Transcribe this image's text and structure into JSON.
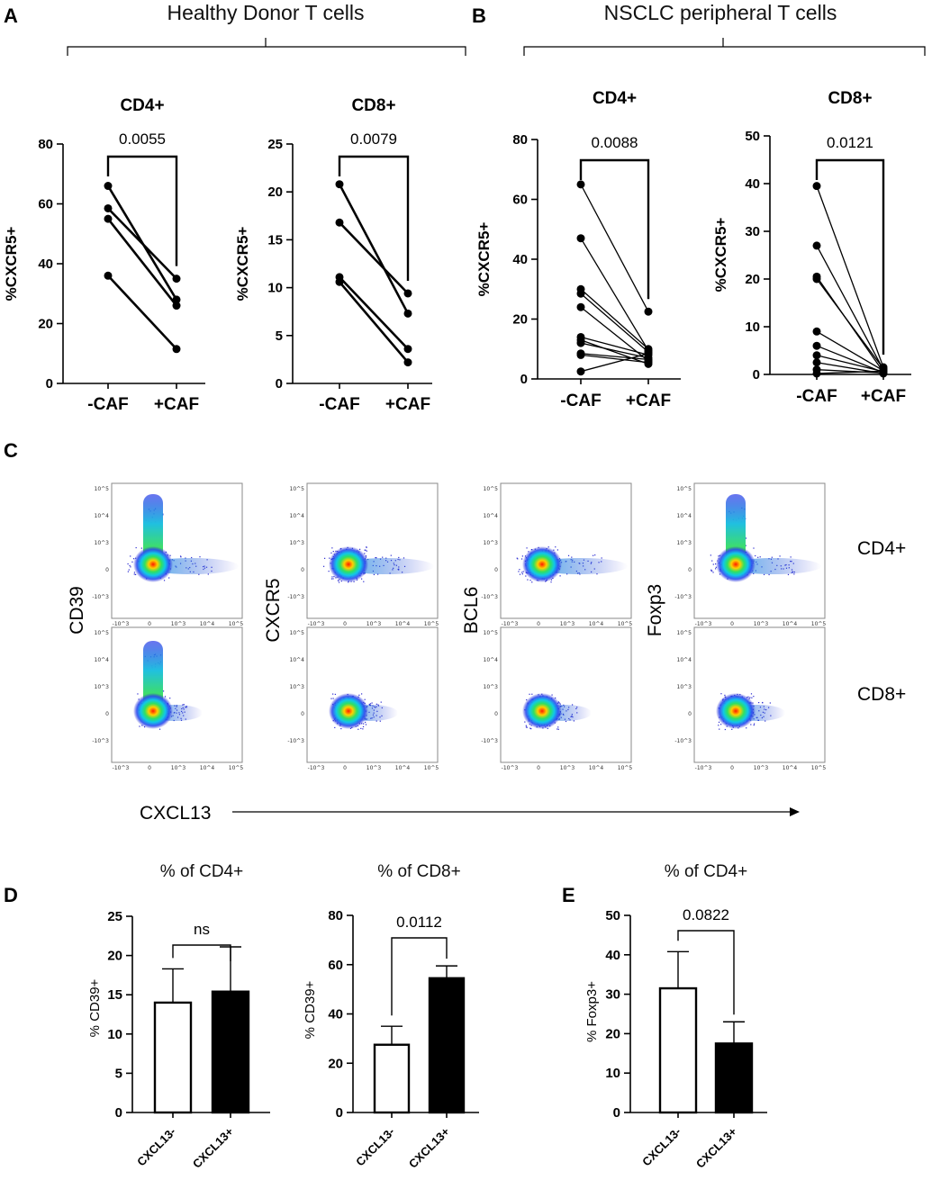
{
  "panel_labels": {
    "a": "A",
    "b": "B",
    "c": "C",
    "d": "D",
    "e": "E"
  },
  "groups": {
    "a": "Healthy Donor T cells",
    "b": "NSCLC peripheral T cells"
  },
  "flow": {
    "row_labels": [
      "CD4+",
      "CD8+"
    ],
    "y_markers": [
      "CD39",
      "CXCR5",
      "BCL6",
      "Foxp3"
    ],
    "x_marker": "CXCL13",
    "y_ticks": [
      "10^5",
      "10^4",
      "10^3",
      "0",
      "-10^3"
    ],
    "x_ticks": [
      "-10^3",
      "0",
      "10^3",
      "10^4",
      "10^5"
    ]
  },
  "colors": {
    "line": "#000000",
    "bar_neg": "#ffffff",
    "bar_pos": "#000000",
    "flow_bg": "#2a2ad0",
    "flow_core": "#ff2000"
  },
  "chart_data": [
    {
      "id": "a1",
      "type": "line",
      "title": "CD4+",
      "ylabel": "%CXCR5+",
      "categories": [
        "-CAF",
        "+CAF"
      ],
      "ylim": [
        0,
        80
      ],
      "yticks": [
        0,
        20,
        40,
        60,
        80
      ],
      "pvalue": "0.0055",
      "pairs": [
        [
          66,
          28
        ],
        [
          58.5,
          35
        ],
        [
          55,
          26
        ],
        [
          36,
          11.5
        ]
      ]
    },
    {
      "id": "a2",
      "type": "line",
      "title": "CD8+",
      "ylabel": "%CXCR5+",
      "categories": [
        "-CAF",
        "+CAF"
      ],
      "ylim": [
        0,
        25
      ],
      "yticks": [
        0,
        5,
        10,
        15,
        20,
        25
      ],
      "pvalue": "0.0079",
      "pairs": [
        [
          20.8,
          7.3
        ],
        [
          16.8,
          9.4
        ],
        [
          11.1,
          3.6
        ],
        [
          10.6,
          2.2
        ]
      ]
    },
    {
      "id": "b1",
      "type": "line",
      "title": "CD4+",
      "ylabel": "%CXCR5+",
      "categories": [
        "-CAF",
        "+CAF"
      ],
      "ylim": [
        0,
        80
      ],
      "yticks": [
        0,
        20,
        40,
        60,
        80
      ],
      "pvalue": "0.0088",
      "pairs": [
        [
          65,
          22.5
        ],
        [
          47,
          9.5
        ],
        [
          30,
          10
        ],
        [
          28.5,
          9
        ],
        [
          24,
          6
        ],
        [
          14,
          8
        ],
        [
          13,
          5
        ],
        [
          12,
          7
        ],
        [
          8.5,
          6.5
        ],
        [
          8,
          5.5
        ],
        [
          2.5,
          8.5
        ]
      ]
    },
    {
      "id": "b2",
      "type": "line",
      "title": "CD8+",
      "ylabel": "%CXCR5+",
      "categories": [
        "-CAF",
        "+CAF"
      ],
      "ylim": [
        0,
        50
      ],
      "yticks": [
        0,
        10,
        20,
        30,
        40,
        50
      ],
      "pvalue": "0.0121",
      "pairs": [
        [
          39.5,
          1.5
        ],
        [
          27,
          1
        ],
        [
          20.5,
          0.5
        ],
        [
          20,
          1.2
        ],
        [
          9,
          0.8
        ],
        [
          6,
          0.4
        ],
        [
          4,
          0.6
        ],
        [
          2.5,
          0.2
        ],
        [
          1,
          0.3
        ],
        [
          0.2,
          0.7
        ]
      ]
    },
    {
      "id": "d1",
      "type": "bar",
      "title": "% of CD4+",
      "ylabel": "% CD39+",
      "categories": [
        "CXCL13-",
        "CXCL13+"
      ],
      "ylim": [
        0,
        25
      ],
      "yticks": [
        0,
        5,
        10,
        15,
        20,
        25
      ],
      "pvalue": "ns",
      "values": [
        14,
        15.4
      ],
      "errors": [
        4.3,
        5.7
      ]
    },
    {
      "id": "d2",
      "type": "bar",
      "title": "% of CD8+",
      "ylabel": "% CD39+",
      "categories": [
        "CXCL13-",
        "CXCL13+"
      ],
      "ylim": [
        0,
        80
      ],
      "yticks": [
        0,
        20,
        40,
        60,
        80
      ],
      "pvalue": "0.0112",
      "values": [
        27.5,
        54.5
      ],
      "errors": [
        7.5,
        5
      ]
    },
    {
      "id": "e1",
      "type": "bar",
      "title": "% of CD4+",
      "ylabel": "% Foxp3+",
      "categories": [
        "CXCL13-",
        "CXCL13+"
      ],
      "ylim": [
        0,
        50
      ],
      "yticks": [
        0,
        10,
        20,
        30,
        40,
        50
      ],
      "pvalue": "0.0822",
      "values": [
        31.5,
        17.5
      ],
      "errors": [
        9.3,
        5.5
      ]
    }
  ]
}
